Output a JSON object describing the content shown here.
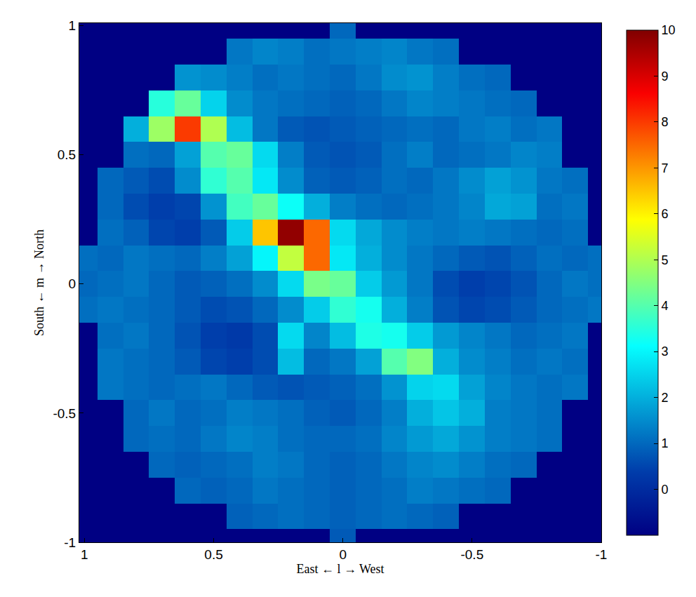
{
  "chart_data": {
    "type": "heatmap",
    "x_label": "East ← l → West",
    "y_label": "South ← m → North",
    "x": [
      -1,
      -0.9,
      -0.8,
      -0.7,
      -0.6,
      -0.5,
      -0.4,
      -0.3,
      -0.2,
      -0.1,
      0,
      0.1,
      0.2,
      0.3,
      0.4,
      0.5,
      0.6,
      0.7,
      0.8,
      0.9,
      1
    ],
    "y": [
      -1,
      -0.9,
      -0.8,
      -0.7,
      -0.6,
      -0.5,
      -0.4,
      -0.3,
      -0.2,
      -0.1,
      0,
      0.1,
      0.2,
      0.3,
      0.4,
      0.5,
      0.6,
      0.7,
      0.8,
      0.9,
      1
    ],
    "cells": [
      [
        null,
        null,
        null,
        null,
        null,
        null,
        null,
        null,
        null,
        null,
        0.8,
        null,
        null,
        null,
        null,
        null,
        null,
        null,
        null,
        null,
        null
      ],
      [
        null,
        null,
        null,
        null,
        null,
        null,
        0.9,
        1.0,
        1.1,
        1.0,
        0.9,
        1.0,
        1.1,
        1.0,
        0.9,
        null,
        null,
        null,
        null,
        null,
        null
      ],
      [
        null,
        null,
        null,
        null,
        1.0,
        1.1,
        1.2,
        1.3,
        1.1,
        1.0,
        0.9,
        1.0,
        1.1,
        1.2,
        1.0,
        0.9,
        1.0,
        null,
        null,
        null,
        null
      ],
      [
        null,
        null,
        null,
        1.0,
        1.1,
        1.3,
        1.5,
        1.4,
        1.2,
        1.0,
        0.9,
        1.0,
        1.2,
        1.3,
        1.1,
        1.0,
        0.9,
        1.0,
        null,
        null,
        null
      ],
      [
        null,
        null,
        1.1,
        1.2,
        1.3,
        1.6,
        1.9,
        1.7,
        1.4,
        1.1,
        1.0,
        1.0,
        1.1,
        1.3,
        1.4,
        1.2,
        1.0,
        1.1,
        1.0,
        null,
        null
      ],
      [
        null,
        null,
        1.1,
        1.2,
        1.3,
        2.0,
        2.3,
        2.0,
        1.3,
        1.0,
        0.8,
        0.9,
        1.1,
        1.2,
        1.3,
        1.1,
        1.0,
        1.2,
        1.0,
        null,
        null
      ],
      [
        null,
        1.2,
        1.1,
        1.2,
        1.4,
        1.8,
        2.6,
        2.5,
        1.6,
        1.1,
        0.9,
        0.8,
        0.7,
        0.8,
        1.0,
        1.2,
        1.1,
        1.0,
        1.1,
        1.2,
        null
      ],
      [
        null,
        1.1,
        1.2,
        1.1,
        1.3,
        1.5,
        2.0,
        4.5,
        4.0,
        1.8,
        1.2,
        1.0,
        2.2,
        0.6,
        0.4,
        0.5,
        0.8,
        1.0,
        1.1,
        1.2,
        null
      ],
      [
        null,
        1.2,
        1.1,
        1.0,
        1.2,
        1.4,
        1.7,
        2.4,
        3.3,
        3.4,
        2.2,
        1.4,
        2.6,
        0.6,
        0.3,
        0.4,
        0.7,
        1.0,
        1.2,
        1.1,
        null
      ],
      [
        1.2,
        1.1,
        1.0,
        0.8,
        0.6,
        0.5,
        0.7,
        1.3,
        2.0,
        3.3,
        3.6,
        2.4,
        1.5,
        1.0,
        0.7,
        0.6,
        0.8,
        1.0,
        1.1,
        1.2,
        1.1
      ],
      [
        1.1,
        1.2,
        1.0,
        0.7,
        0.5,
        0.4,
        0.6,
        1.2,
        1.7,
        2.4,
        4.2,
        4.4,
        2.6,
        1.5,
        1.1,
        0.9,
        0.8,
        1.0,
        1.2,
        1.1,
        1.0
      ],
      [
        1.1,
        1.0,
        1.1,
        0.9,
        0.7,
        0.8,
        1.0,
        1.2,
        1.5,
        2.0,
        2.8,
        7.5,
        5.2,
        3.0,
        1.8,
        1.3,
        1.0,
        1.1,
        1.2,
        1.0,
        1.1
      ],
      [
        null,
        1.1,
        1.0,
        1.1,
        1.2,
        1.3,
        1.2,
        1.3,
        1.5,
        1.9,
        2.6,
        7.5,
        9.8,
        6.5,
        2.4,
        0.8,
        0.4,
        0.5,
        0.9,
        1.1,
        null
      ],
      [
        null,
        1.2,
        1.1,
        1.8,
        1.9,
        1.4,
        1.2,
        1.1,
        1.0,
        1.1,
        1.3,
        2.0,
        3.2,
        4.2,
        3.8,
        1.6,
        0.5,
        0.4,
        0.6,
        1.0,
        null
      ],
      [
        null,
        1.1,
        1.2,
        1.6,
        1.8,
        1.5,
        1.2,
        1.0,
        1.1,
        0.9,
        0.8,
        0.9,
        1.5,
        2.8,
        4.0,
        3.6,
        1.5,
        0.6,
        0.8,
        1.0,
        null
      ],
      [
        null,
        null,
        1.3,
        1.4,
        1.2,
        1.1,
        1.0,
        1.3,
        1.1,
        0.8,
        0.7,
        0.8,
        1.3,
        2.6,
        4.2,
        4.0,
        1.8,
        1.0,
        1.1,
        null,
        null
      ],
      [
        null,
        null,
        1.2,
        1.1,
        1.3,
        1.2,
        1.0,
        1.1,
        1.0,
        0.9,
        0.8,
        0.7,
        0.8,
        1.2,
        2.2,
        5.0,
        8.0,
        4.8,
        2.0,
        null,
        null
      ],
      [
        null,
        null,
        null,
        1.0,
        1.1,
        1.2,
        1.3,
        1.4,
        1.2,
        1.0,
        0.9,
        1.0,
        1.1,
        1.2,
        1.5,
        2.5,
        4.2,
        3.5,
        null,
        null,
        null
      ],
      [
        null,
        null,
        null,
        null,
        1.0,
        1.1,
        1.3,
        1.6,
        1.5,
        1.2,
        1.0,
        1.1,
        1.2,
        1.1,
        1.3,
        1.5,
        1.6,
        null,
        null,
        null,
        null
      ],
      [
        null,
        null,
        null,
        null,
        null,
        null,
        1.1,
        1.2,
        1.4,
        1.3,
        1.2,
        1.1,
        1.3,
        1.4,
        1.2,
        null,
        null,
        null,
        null,
        null,
        null
      ],
      [
        null,
        null,
        null,
        null,
        null,
        null,
        null,
        null,
        null,
        null,
        1.0,
        null,
        null,
        null,
        null,
        null,
        null,
        null,
        null,
        null,
        null
      ]
    ],
    "xlim": [
      1.02,
      -1
    ],
    "ylim": [
      -1,
      1.01
    ],
    "xticks": [
      1,
      0.5,
      0,
      -0.5,
      -1
    ],
    "yticks": [
      -1,
      -0.5,
      0,
      0.5,
      1
    ],
    "colorbar_range": [
      -1,
      10
    ],
    "colorbar_ticks": [
      0,
      1,
      2,
      3,
      4,
      5,
      6,
      7,
      8,
      9,
      10
    ],
    "grid": false
  }
}
